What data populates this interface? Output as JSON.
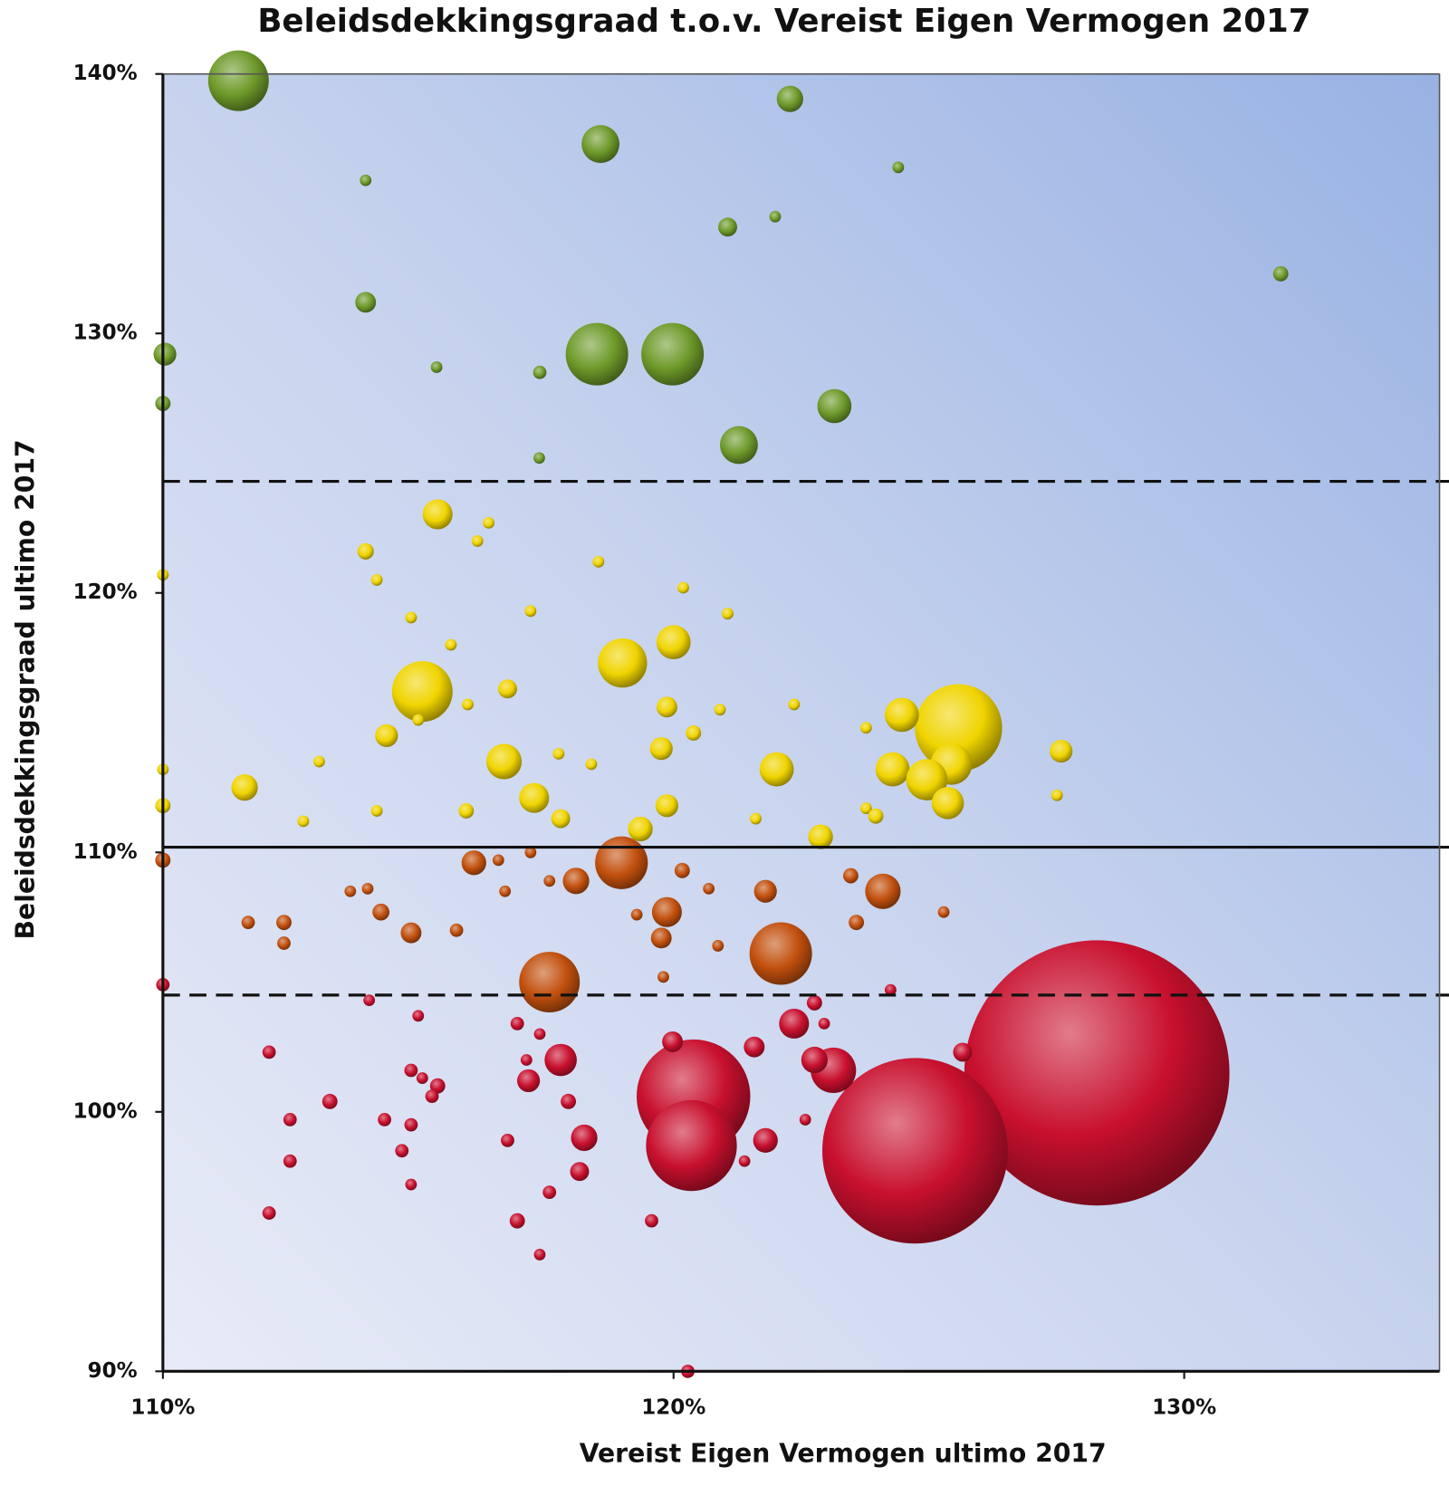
{
  "chart_data": {
    "type": "bubble",
    "title": "Beleidsdekkingsgraad t.o.v. Vereist Eigen Vermogen 2017",
    "x_label": "Vereist Eigen Vermogen ultimo 2017",
    "y_label": "Beleidsdekkingsgraad ultimo 2017",
    "xlim": [
      110,
      135
    ],
    "ylim": [
      90,
      140
    ],
    "xticks": [
      {
        "value": 110,
        "label": "110%"
      },
      {
        "value": 120,
        "label": "120%"
      },
      {
        "value": 130,
        "label": "130%"
      }
    ],
    "yticks": [
      {
        "value": 90,
        "label": "90%"
      },
      {
        "value": 100,
        "label": "100%"
      },
      {
        "value": 110,
        "label": "110%"
      },
      {
        "value": 120,
        "label": "120%"
      },
      {
        "value": 130,
        "label": "130%"
      },
      {
        "value": 140,
        "label": "140%"
      }
    ],
    "reference_lines": [
      {
        "value": 124.3,
        "style": "dashed"
      },
      {
        "value": 110.2,
        "style": "solid"
      },
      {
        "value": 104.5,
        "style": "dashed"
      }
    ],
    "series": [
      {
        "color": "#6e9a2a",
        "x": [
          111.48,
          122.28,
          118.57,
          113.97,
          124.4,
          121.06,
          121.99,
          131.89,
          113.97,
          110.04,
          118.5,
          119.98,
          115.36,
          117.38,
          110.0,
          123.15,
          121.28,
          117.37
        ],
        "values": [
          139.74,
          139.04,
          137.3,
          135.9,
          136.4,
          134.1,
          134.5,
          132.3,
          131.2,
          129.2,
          129.2,
          129.2,
          128.7,
          128.5,
          127.3,
          127.2,
          125.7,
          125.2
        ],
        "sizes": [
          41,
          7.8,
          16,
          1.5,
          1.5,
          4,
          1.5,
          2.6,
          4.8,
          5.8,
          43.6,
          43.6,
          1.5,
          2,
          2.6,
          13,
          16,
          1.5
        ]
      },
      {
        "color": "#f0d400",
        "x": [
          125.58,
          115.08,
          119.0,
          115.38,
          113.97,
          114.19,
          116.38,
          116.16,
          110.0,
          118.53,
          120.19,
          117.2,
          121.06,
          114.86,
          120.0,
          124.47,
          116.75,
          115.97,
          119.87,
          114.38,
          116.68,
          122.02,
          124.29,
          125.44,
          124.96,
          125.37,
          119.76,
          127.59,
          111.6,
          117.27,
          119.87,
          117.79,
          119.35,
          122.88,
          115.94,
          113.06,
          112.75,
          114.19,
          117.75,
          118.39,
          120.39,
          120.91,
          122.36,
          123.77,
          127.51,
          123.77,
          123.96,
          121.61,
          115.0,
          115.64,
          110.0,
          110.0
        ],
        "values": [
          114.8,
          116.2,
          117.3,
          123.03,
          121.6,
          120.5,
          122.7,
          122.0,
          120.7,
          121.2,
          120.2,
          119.3,
          119.2,
          119.05,
          118.1,
          115.3,
          116.3,
          115.7,
          115.6,
          114.5,
          113.5,
          113.2,
          113.2,
          113.4,
          112.8,
          111.9,
          114.0,
          113.9,
          112.5,
          112.1,
          111.8,
          111.3,
          110.9,
          110.6,
          111.6,
          113.5,
          111.2,
          111.6,
          113.8,
          113.4,
          114.6,
          115.5,
          115.7,
          114.8,
          112.2,
          111.7,
          111.4,
          111.3,
          115.1,
          118.0,
          113.2,
          111.8
        ],
        "sizes": [
          85,
          41,
          27,
          10,
          3,
          1.5,
          1.5,
          1.5,
          1.5,
          1.5,
          1.5,
          1.5,
          1.5,
          1.5,
          13,
          13,
          4,
          1.5,
          4.8,
          5.8,
          14,
          13,
          13,
          19,
          19,
          11.6,
          5.8,
          5.8,
          7.8,
          10,
          5.8,
          4,
          6.8,
          6.8,
          2.6,
          1.5,
          1.5,
          1.5,
          1.5,
          1.5,
          2.6,
          1.5,
          1.5,
          1.5,
          1.5,
          1.5,
          2.6,
          1.5,
          1.5,
          1.5,
          1.5,
          2.6
        ]
      },
      {
        "color": "#c2500e",
        "x": [
          122.1,
          117.57,
          118.98,
          116.09,
          118.09,
          119.87,
          124.1,
          121.8,
          119.76,
          110.0,
          114.86,
          114.27,
          114.01,
          113.67,
          112.37,
          112.37,
          111.67,
          115.75,
          116.7,
          116.57,
          117.57,
          119.28,
          120.17,
          120.69,
          123.47,
          123.58,
          125.29,
          120.87,
          119.8,
          117.2
        ],
        "values": [
          106.1,
          105.0,
          109.6,
          109.6,
          108.9,
          107.7,
          108.5,
          108.5,
          106.7,
          109.7,
          106.9,
          107.7,
          108.6,
          108.5,
          107.3,
          106.5,
          107.3,
          107.0,
          108.5,
          109.7,
          108.9,
          107.6,
          109.3,
          108.6,
          109.1,
          107.3,
          107.7,
          106.4,
          105.2,
          110.0
        ],
        "sizes": [
          43.6,
          41,
          31,
          6.8,
          7.8,
          10,
          14,
          5.8,
          4.8,
          2.6,
          4.8,
          3.2,
          1.5,
          1.5,
          2.6,
          2,
          2,
          2,
          1.5,
          1.5,
          1.5,
          1.5,
          2.6,
          1.5,
          2.6,
          2.6,
          1.5,
          1.5,
          1.5,
          1.5
        ]
      },
      {
        "color": "#c8102e",
        "x": [
          128.29,
          124.73,
          120.39,
          120.35,
          123.13,
          122.76,
          122.36,
          117.79,
          117.16,
          118.25,
          121.8,
          118.16,
          121.58,
          119.98,
          125.66,
          122.76,
          110.0,
          112.08,
          112.49,
          112.49,
          112.08,
          113.27,
          114.04,
          114.86,
          115.08,
          115.38,
          115.27,
          114.34,
          114.68,
          114.86,
          114.86,
          116.75,
          116.94,
          117.38,
          117.57,
          116.94,
          117.38,
          117.12,
          117.94,
          119.57,
          121.39,
          122.58,
          122.95,
          124.25,
          120.28,
          115.0
        ],
        "values": [
          101.5,
          98.5,
          100.6,
          98.7,
          101.6,
          102.0,
          103.4,
          102.0,
          101.2,
          99.0,
          98.9,
          97.7,
          102.5,
          102.7,
          102.3,
          104.2,
          104.9,
          102.3,
          99.7,
          98.1,
          96.1,
          100.4,
          104.3,
          101.6,
          101.3,
          101.0,
          100.6,
          99.7,
          98.5,
          99.5,
          97.2,
          98.9,
          95.8,
          94.5,
          96.9,
          103.4,
          103.0,
          102.0,
          100.4,
          95.8,
          98.1,
          99.7,
          103.4,
          104.7,
          90.0,
          103.7
        ],
        "sizes": [
          784,
          384,
          144,
          92,
          23,
          7.8,
          10,
          11.6,
          5.8,
          7.8,
          6.8,
          4,
          4.8,
          4.8,
          4,
          2.6,
          2,
          2,
          2,
          2,
          2,
          2.6,
          1.5,
          2,
          1.5,
          2.6,
          2,
          2,
          2,
          2,
          1.5,
          2,
          2.6,
          1.5,
          2,
          2,
          1.5,
          1.5,
          2.6,
          2,
          1.5,
          1.5,
          1.5,
          1.5,
          2,
          1.5
        ]
      }
    ]
  }
}
